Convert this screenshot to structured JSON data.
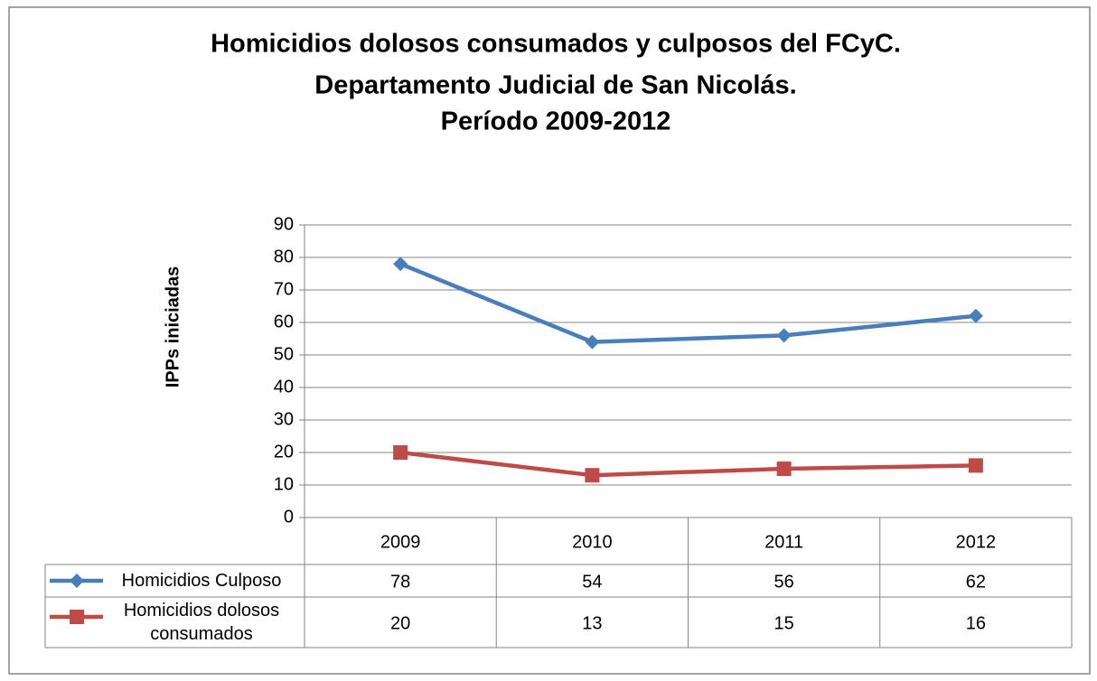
{
  "chart_data": {
    "type": "line",
    "title": [
      "Homicidios dolosos consumados y culposos del FCyC.",
      "Departamento Judicial de San Nicolás.",
      "Período  2009-2012"
    ],
    "ylabel": "IPPs iniciadas",
    "categories": [
      "2009",
      "2010",
      "2011",
      "2012"
    ],
    "series": [
      {
        "name": "Homicidios Culposo",
        "color": "#4a7ebb",
        "marker": "diamond",
        "values": [
          78,
          54,
          56,
          62
        ]
      },
      {
        "name": "Homicidios dolosos consumados",
        "color": "#be4b48",
        "marker": "square",
        "values": [
          20,
          13,
          15,
          16
        ]
      }
    ],
    "ylim": [
      0,
      90
    ],
    "yticks": [
      0,
      10,
      20,
      30,
      40,
      50,
      60,
      70,
      80,
      90
    ],
    "grid": true,
    "data_table": true
  }
}
